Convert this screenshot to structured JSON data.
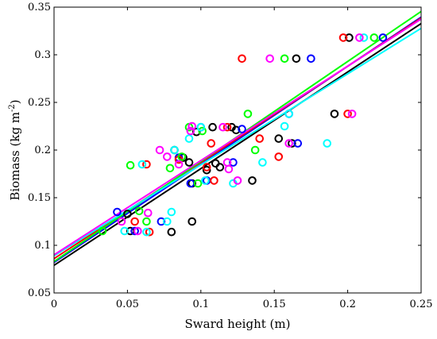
{
  "chart_data": {
    "type": "scatter",
    "xlabel": "Sward height (m)",
    "ylabel": "Biomass (kg m",
    "ylabel_sup": "-2",
    "ylabel_close": ")",
    "xlim": [
      0,
      0.25
    ],
    "ylim": [
      0.05,
      0.35
    ],
    "x_ticks": [
      "0",
      "0.05",
      "0.1",
      "0.15",
      "0.2",
      "0.25"
    ],
    "y_ticks": [
      "0.05",
      "0.1",
      "0.15",
      "0.2",
      "0.25",
      "0.3",
      "0.35"
    ],
    "grid": false,
    "series": [
      {
        "color": "#000000",
        "fit": {
          "intercept": 0.079,
          "slope": 1.015
        },
        "points": [
          [
            0.05,
            0.133
          ],
          [
            0.052,
            0.115
          ],
          [
            0.08,
            0.114
          ],
          [
            0.082,
            0.2
          ],
          [
            0.088,
            0.192
          ],
          [
            0.092,
            0.187
          ],
          [
            0.094,
            0.165
          ],
          [
            0.094,
            0.125
          ],
          [
            0.097,
            0.219
          ],
          [
            0.104,
            0.179
          ],
          [
            0.108,
            0.224
          ],
          [
            0.11,
            0.186
          ],
          [
            0.113,
            0.182
          ],
          [
            0.121,
            0.224
          ],
          [
            0.124,
            0.221
          ],
          [
            0.135,
            0.168
          ],
          [
            0.153,
            0.212
          ],
          [
            0.162,
            0.207
          ],
          [
            0.165,
            0.296
          ],
          [
            0.191,
            0.238
          ],
          [
            0.201,
            0.318
          ]
        ]
      },
      {
        "color": "#0000ff",
        "fit": {
          "intercept": 0.082,
          "slope": 1.03
        },
        "points": [
          [
            0.043,
            0.135
          ],
          [
            0.055,
            0.115
          ],
          [
            0.073,
            0.125
          ],
          [
            0.085,
            0.192
          ],
          [
            0.093,
            0.165
          ],
          [
            0.1,
            0.224
          ],
          [
            0.104,
            0.168
          ],
          [
            0.122,
            0.187
          ],
          [
            0.128,
            0.222
          ],
          [
            0.16,
            0.238
          ],
          [
            0.166,
            0.207
          ],
          [
            0.175,
            0.296
          ],
          [
            0.224,
            0.318
          ]
        ]
      },
      {
        "color": "#ff0000",
        "fit": {
          "intercept": 0.086,
          "slope": 1.01
        },
        "points": [
          [
            0.055,
            0.125
          ],
          [
            0.063,
            0.185
          ],
          [
            0.065,
            0.114
          ],
          [
            0.085,
            0.19
          ],
          [
            0.104,
            0.182
          ],
          [
            0.107,
            0.207
          ],
          [
            0.109,
            0.168
          ],
          [
            0.118,
            0.224
          ],
          [
            0.128,
            0.296
          ],
          [
            0.14,
            0.212
          ],
          [
            0.153,
            0.193
          ],
          [
            0.197,
            0.318
          ],
          [
            0.2,
            0.238
          ]
        ]
      },
      {
        "color": "#00ff00",
        "fit": {
          "intercept": 0.083,
          "slope": 1.05
        },
        "points": [
          [
            0.033,
            0.115
          ],
          [
            0.052,
            0.184
          ],
          [
            0.058,
            0.136
          ],
          [
            0.063,
            0.125
          ],
          [
            0.079,
            0.181
          ],
          [
            0.087,
            0.193
          ],
          [
            0.092,
            0.224
          ],
          [
            0.098,
            0.165
          ],
          [
            0.101,
            0.22
          ],
          [
            0.132,
            0.238
          ],
          [
            0.137,
            0.2
          ],
          [
            0.157,
            0.296
          ],
          [
            0.218,
            0.318
          ]
        ]
      },
      {
        "color": "#00ffff",
        "fit": {
          "intercept": 0.089,
          "slope": 0.955
        },
        "points": [
          [
            0.048,
            0.115
          ],
          [
            0.06,
            0.185
          ],
          [
            0.063,
            0.114
          ],
          [
            0.077,
            0.125
          ],
          [
            0.08,
            0.135
          ],
          [
            0.082,
            0.2
          ],
          [
            0.092,
            0.212
          ],
          [
            0.1,
            0.224
          ],
          [
            0.103,
            0.168
          ],
          [
            0.122,
            0.165
          ],
          [
            0.142,
            0.187
          ],
          [
            0.157,
            0.225
          ],
          [
            0.16,
            0.238
          ],
          [
            0.186,
            0.207
          ],
          [
            0.211,
            0.318
          ]
        ]
      },
      {
        "color": "#ff00ff",
        "fit": {
          "intercept": 0.09,
          "slope": 0.99
        },
        "points": [
          [
            0.046,
            0.125
          ],
          [
            0.057,
            0.115
          ],
          [
            0.064,
            0.134
          ],
          [
            0.072,
            0.2
          ],
          [
            0.077,
            0.193
          ],
          [
            0.085,
            0.185
          ],
          [
            0.093,
            0.22
          ],
          [
            0.094,
            0.225
          ],
          [
            0.115,
            0.224
          ],
          [
            0.118,
            0.187
          ],
          [
            0.119,
            0.18
          ],
          [
            0.125,
            0.168
          ],
          [
            0.147,
            0.296
          ],
          [
            0.16,
            0.207
          ],
          [
            0.203,
            0.238
          ],
          [
            0.208,
            0.318
          ]
        ]
      }
    ]
  }
}
